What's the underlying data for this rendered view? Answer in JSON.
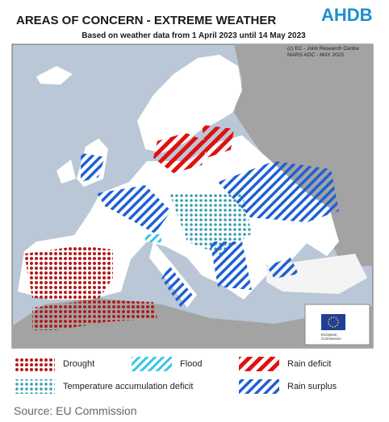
{
  "header": {
    "title": "AREAS OF CONCERN - EXTREME WEATHER",
    "subtitle": "Based on weather data from 1 April 2023 until 14 May 2023",
    "logo": "AHDB"
  },
  "map": {
    "credit": [
      "(c) EC - Joint Research Centre",
      "MARS AOC - MAY 2023"
    ],
    "eu_logo": [
      "European",
      "Commission"
    ]
  },
  "legend": [
    {
      "label": "Drought"
    },
    {
      "label": "Flood"
    },
    {
      "label": "Rain deficit"
    },
    {
      "label": "Temperature accumulation deficit"
    },
    {
      "label": "Rain surplus"
    }
  ],
  "source": "Source: EU Commission"
}
